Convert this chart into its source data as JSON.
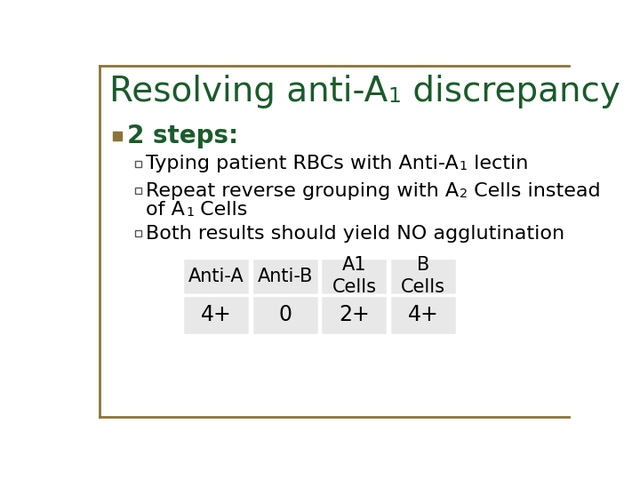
{
  "title_color": "#1a5c2a",
  "bg_color": "#ffffff",
  "border_color": "#8B7536",
  "bullet_color": "#8B7536",
  "bullet_text": "2 steps:",
  "bullet_text_color": "#1a5c2a",
  "text_color": "#000000",
  "table_headers": [
    "Anti-A",
    "Anti-B",
    "A1\nCells",
    "B\nCells"
  ],
  "table_values": [
    "4+",
    "0",
    "2+",
    "4+"
  ],
  "table_bg": "#e8e8e8",
  "font_size_title": 28,
  "font_size_bullet": 20,
  "font_size_sub": 16,
  "font_size_table": 15
}
